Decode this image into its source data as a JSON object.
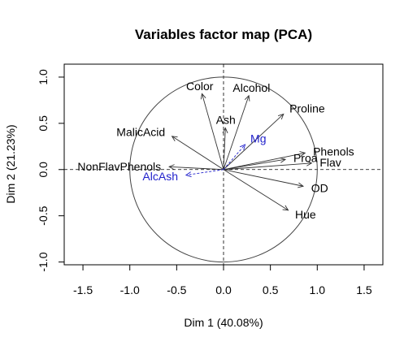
{
  "chart_data": {
    "type": "scatter",
    "title": "Variables factor map (PCA)",
    "xlabel": "Dim 1 (40.08%)",
    "ylabel": "Dim 2 (21.23%)",
    "xlim": [
      -1.7,
      1.7
    ],
    "ylim": [
      -1.03,
      1.14
    ],
    "x_ticks": [
      -1.5,
      -1.0,
      -0.5,
      0.0,
      0.5,
      1.0,
      1.5
    ],
    "x_tick_labels": [
      "-1.5",
      "-1.0",
      "-0.5",
      "0.0",
      "0.5",
      "1.0",
      "1.5"
    ],
    "y_ticks": [
      -1.0,
      -0.5,
      0.0,
      0.5,
      1.0
    ],
    "y_tick_labels": [
      "-1.0",
      "-0.5",
      "0.0",
      "0.5",
      "1.0"
    ],
    "unit_circle": true,
    "reference_lines": "dashed at x=0 and y=0",
    "colors": {
      "active": "#333333",
      "supplementary": "#2222cc",
      "active_label": "#000000"
    },
    "variables": [
      {
        "name": "Color",
        "x": -0.23,
        "y": 0.82,
        "supplementary": false
      },
      {
        "name": "Alcohol",
        "x": 0.27,
        "y": 0.8,
        "supplementary": false
      },
      {
        "name": "Ash",
        "x": 0.02,
        "y": 0.45,
        "supplementary": false
      },
      {
        "name": "Proline",
        "x": 0.64,
        "y": 0.6,
        "supplementary": false
      },
      {
        "name": "MalicAcid",
        "x": -0.55,
        "y": 0.36,
        "supplementary": false
      },
      {
        "name": "Phenols",
        "x": 0.87,
        "y": 0.18,
        "supplementary": false
      },
      {
        "name": "Flav",
        "x": 0.94,
        "y": 0.07,
        "supplementary": false
      },
      {
        "name": "Proa",
        "x": 0.66,
        "y": 0.11,
        "supplementary": false
      },
      {
        "name": "NonFlavPhenols",
        "x": -0.58,
        "y": 0.03,
        "supplementary": false
      },
      {
        "name": "OD",
        "x": 0.85,
        "y": -0.18,
        "supplementary": false
      },
      {
        "name": "Hue",
        "x": 0.69,
        "y": -0.44,
        "supplementary": false
      },
      {
        "name": "Mg",
        "x": 0.23,
        "y": 0.27,
        "supplementary": true
      },
      {
        "name": "AlcAsh",
        "x": -0.4,
        "y": -0.06,
        "supplementary": true
      }
    ]
  }
}
